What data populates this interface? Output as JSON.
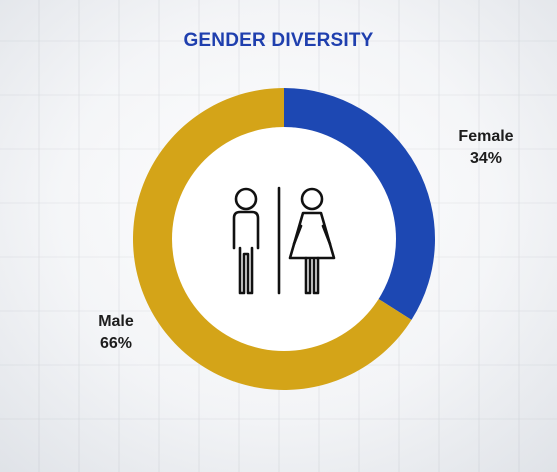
{
  "page": {
    "title": "GENDER DIVERSITY"
  },
  "chart_data": {
    "type": "pie",
    "title": "GENDER DIVERSITY",
    "donut": true,
    "categories": [
      "Female",
      "Male"
    ],
    "values": [
      34,
      66
    ],
    "labels": [
      "34%",
      "66%"
    ],
    "colors": [
      "#1D48B3",
      "#D4A418"
    ],
    "legend": "none",
    "center_icon": "male-female-restroom-icon"
  }
}
